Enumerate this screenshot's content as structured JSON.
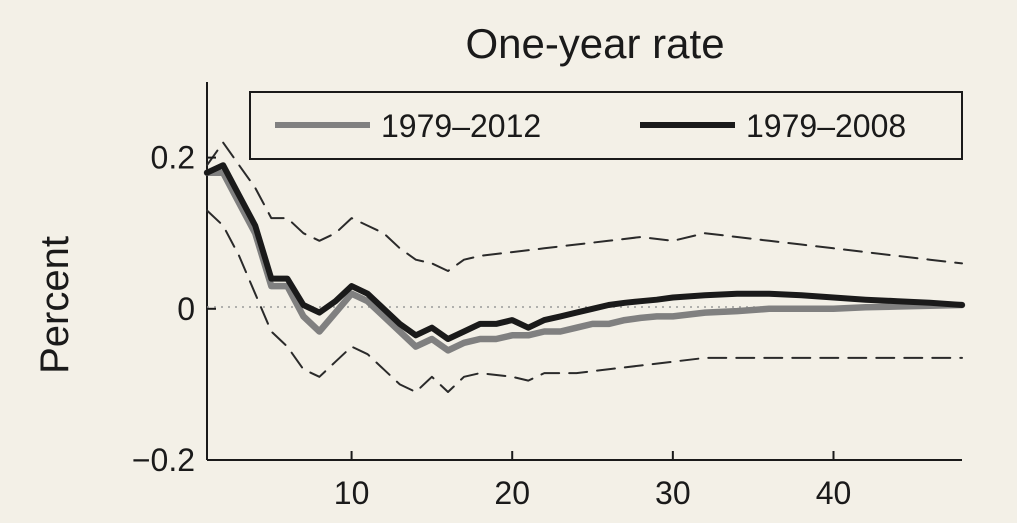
{
  "chart_data": {
    "type": "line",
    "title": "One-year rate",
    "xlabel": "",
    "ylabel": "Percent",
    "xlim": [
      1,
      48
    ],
    "ylim": [
      -0.2,
      0.3
    ],
    "xticks": [
      10,
      20,
      30,
      40
    ],
    "xtick_labels": [
      "10",
      "20",
      "30",
      "40"
    ],
    "yticks": [
      0.2,
      0,
      -0.2
    ],
    "ytick_labels": [
      "0.2",
      "0",
      "−0.2"
    ],
    "zero_line": true,
    "legend_position": "top-right",
    "series": [
      {
        "name": "1979–2012",
        "color": "#808080",
        "style": "solid",
        "x": [
          1,
          2,
          3,
          4,
          5,
          6,
          7,
          8,
          9,
          10,
          11,
          12,
          13,
          14,
          15,
          16,
          17,
          18,
          19,
          20,
          21,
          22,
          23,
          24,
          25,
          26,
          27,
          28,
          29,
          30,
          32,
          34,
          36,
          38,
          40,
          42,
          44,
          46,
          48
        ],
        "y": [
          0.18,
          0.18,
          0.14,
          0.1,
          0.03,
          0.03,
          -0.01,
          -0.03,
          -0.005,
          0.02,
          0.01,
          -0.01,
          -0.03,
          -0.05,
          -0.04,
          -0.055,
          -0.045,
          -0.04,
          -0.04,
          -0.035,
          -0.035,
          -0.03,
          -0.03,
          -0.025,
          -0.02,
          -0.02,
          -0.015,
          -0.012,
          -0.01,
          -0.01,
          -0.005,
          -0.003,
          0.0,
          0.0,
          0.0,
          0.002,
          0.003,
          0.004,
          0.005
        ]
      },
      {
        "name": "1979–2008",
        "color": "#1a1a1a",
        "style": "solid",
        "x": [
          1,
          2,
          3,
          4,
          5,
          6,
          7,
          8,
          9,
          10,
          11,
          12,
          13,
          14,
          15,
          16,
          17,
          18,
          19,
          20,
          21,
          22,
          23,
          24,
          25,
          26,
          27,
          28,
          29,
          30,
          32,
          34,
          36,
          38,
          40,
          42,
          44,
          46,
          48
        ],
        "y": [
          0.18,
          0.19,
          0.15,
          0.11,
          0.04,
          0.04,
          0.005,
          -0.005,
          0.01,
          0.03,
          0.02,
          0.0,
          -0.02,
          -0.035,
          -0.025,
          -0.04,
          -0.03,
          -0.02,
          -0.02,
          -0.015,
          -0.025,
          -0.015,
          -0.01,
          -0.005,
          0.0,
          0.005,
          0.008,
          0.01,
          0.012,
          0.015,
          0.018,
          0.02,
          0.02,
          0.018,
          0.015,
          0.012,
          0.01,
          0.008,
          0.005
        ]
      },
      {
        "name": "",
        "color": "#2a2a2a",
        "style": "dashed",
        "x": [
          1,
          2,
          3,
          4,
          5,
          6,
          7,
          8,
          9,
          10,
          11,
          12,
          13,
          14,
          15,
          16,
          17,
          18,
          20,
          22,
          24,
          26,
          28,
          30,
          32,
          34,
          36,
          38,
          40,
          42,
          44,
          46,
          48
        ],
        "y": [
          0.19,
          0.22,
          0.19,
          0.16,
          0.12,
          0.12,
          0.1,
          0.09,
          0.1,
          0.12,
          0.11,
          0.1,
          0.08,
          0.065,
          0.06,
          0.05,
          0.065,
          0.07,
          0.075,
          0.08,
          0.085,
          0.09,
          0.095,
          0.09,
          0.1,
          0.095,
          0.09,
          0.085,
          0.08,
          0.075,
          0.07,
          0.065,
          0.06
        ]
      },
      {
        "name": "",
        "color": "#2a2a2a",
        "style": "dashed",
        "x": [
          1,
          2,
          3,
          4,
          5,
          6,
          7,
          8,
          9,
          10,
          11,
          12,
          13,
          14,
          15,
          16,
          17,
          18,
          20,
          21,
          22,
          24,
          26,
          28,
          30,
          32,
          34,
          36,
          38,
          40,
          42,
          44,
          46,
          48
        ],
        "y": [
          0.13,
          0.11,
          0.07,
          0.02,
          -0.03,
          -0.05,
          -0.08,
          -0.09,
          -0.07,
          -0.05,
          -0.06,
          -0.08,
          -0.1,
          -0.11,
          -0.09,
          -0.11,
          -0.09,
          -0.085,
          -0.09,
          -0.095,
          -0.085,
          -0.085,
          -0.08,
          -0.075,
          -0.07,
          -0.065,
          -0.065,
          -0.065,
          -0.065,
          -0.065,
          -0.065,
          -0.065,
          -0.065,
          -0.065
        ]
      }
    ]
  }
}
